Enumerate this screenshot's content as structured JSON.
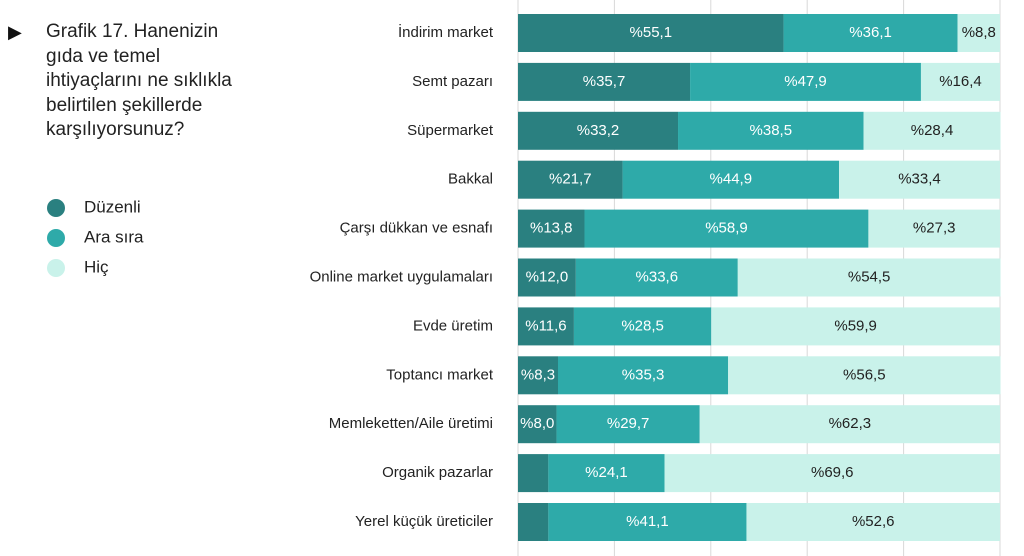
{
  "chart_data": {
    "type": "bar",
    "orientation": "horizontal",
    "stacked": true,
    "title": "Grafik 17. Hanenizin gıda ve temel ihtiyaçlarını ne sıklıkla belirtilen şekillerde karşılıyorsunuz?",
    "categories": [
      "İndirim market",
      "Semt pazarı",
      "Süpermarket",
      "Bakkal",
      "Çarşı dükkan ve esnafı",
      "Online market uygulamaları",
      "Evde üretim",
      "Toptancı market",
      "Memleketten/Aile üretimi",
      "Organik pazarlar",
      "Yerel küçük üreticiler"
    ],
    "series": [
      {
        "name": "Düzenli",
        "color": "#2a8080",
        "values": [
          55.1,
          35.7,
          33.2,
          21.7,
          13.8,
          12.0,
          11.6,
          8.3,
          8.0,
          6.3,
          6.3
        ],
        "value_labels": [
          "%55,1",
          "%35,7",
          "%33,2",
          "%21,7",
          "%13,8",
          "%12,0",
          "%11,6",
          "%8,3",
          "%8,0",
          null,
          null
        ]
      },
      {
        "name": "Ara sıra",
        "color": "#2eaaa9",
        "values": [
          36.1,
          47.9,
          38.5,
          44.9,
          58.9,
          33.6,
          28.5,
          35.3,
          29.7,
          24.1,
          41.1
        ],
        "value_labels": [
          "%36,1",
          "%47,9",
          "%38,5",
          "%44,9",
          "%58,9",
          "%33,6",
          "%28,5",
          "%35,3",
          "%29,7",
          "%24,1",
          "%41,1"
        ]
      },
      {
        "name": "Hiç",
        "color": "#c9f2ea",
        "values": [
          8.8,
          16.4,
          28.4,
          33.4,
          27.3,
          54.5,
          59.9,
          56.5,
          62.3,
          69.6,
          52.6
        ],
        "value_labels": [
          "%8,8",
          "%16,4",
          "%28,4",
          "%33,4",
          "%27,3",
          "%54,5",
          "%59,9",
          "%56,5",
          "%62,3",
          "%69,6",
          "%52,6"
        ]
      }
    ],
    "xlim": [
      0,
      100
    ],
    "xticks": [
      0,
      20,
      40,
      60,
      80,
      100
    ],
    "grid": true
  }
}
